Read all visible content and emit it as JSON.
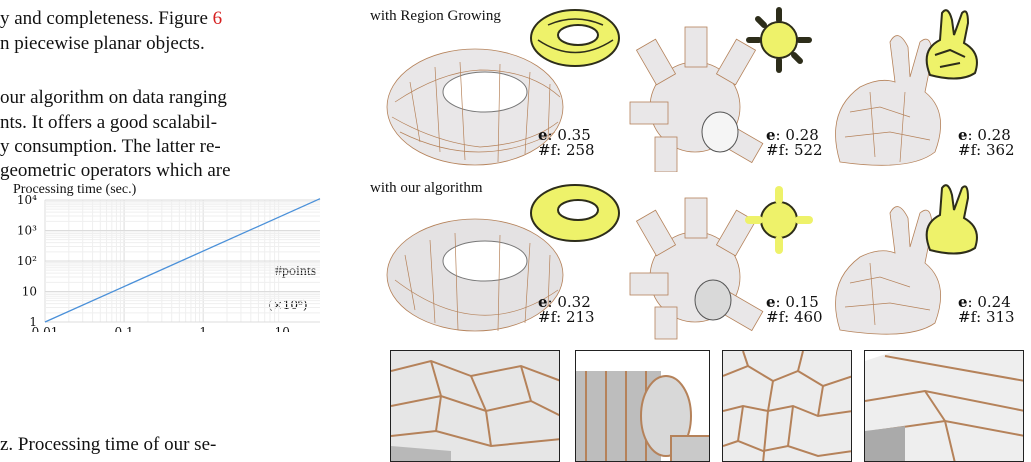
{
  "paper_text": {
    "line1_a": "y and completeness. Figure ",
    "line1_ref": "6",
    "line2": "n piecewise planar objects.",
    "line3": "our algorithm on data ranging",
    "line4": "nts. It offers a good scalabil-",
    "line5": "y consumption. The latter re-",
    "line6": "geometric operators which are",
    "caption_line": "z.  Processing time of our se-"
  },
  "figure": {
    "row1_label": "with Region Growing",
    "row2_label": "with our algorithm",
    "row1": [
      {
        "e_key": "e",
        "e_value": ": 0.35",
        "f_label": "#f: 258"
      },
      {
        "e_key": "e",
        "e_value": ": 0.28",
        "f_label": "#f: 522"
      },
      {
        "e_key": "e",
        "e_value": ": 0.28",
        "f_label": "#f: 362"
      }
    ],
    "row2": [
      {
        "e_key": "e",
        "e_value": ": 0.32",
        "f_label": "#f: 213"
      },
      {
        "e_key": "e",
        "e_value": ": 0.15",
        "f_label": "#f: 460"
      },
      {
        "e_key": "e",
        "e_value": ": 0.24",
        "f_label": "#f: 313"
      }
    ],
    "colors": {
      "mesh_fill": "#e9e7e8",
      "mesh_edge": "#b5825a",
      "inset_yellow": "#eef26a",
      "inset_dark": "#2d2d1a"
    }
  },
  "chart_data": {
    "type": "line",
    "title": "Processing time (sec.)",
    "xlabel": "#points",
    "x_tick_labels": [
      "0.01",
      "0.1",
      "1",
      "10"
    ],
    "x_unit_label": "(×10⁶)",
    "y_tick_labels": [
      "1",
      "10",
      "10²",
      "10³",
      "10⁴"
    ],
    "x_scale": "log",
    "y_scale": "log",
    "xlim": [
      0.01,
      30
    ],
    "ylim": [
      1,
      10000
    ],
    "grid": true,
    "series": [
      {
        "x": [
          0.01,
          30
        ],
        "y": [
          1,
          11000
        ],
        "color": "#4a90d9"
      }
    ]
  }
}
